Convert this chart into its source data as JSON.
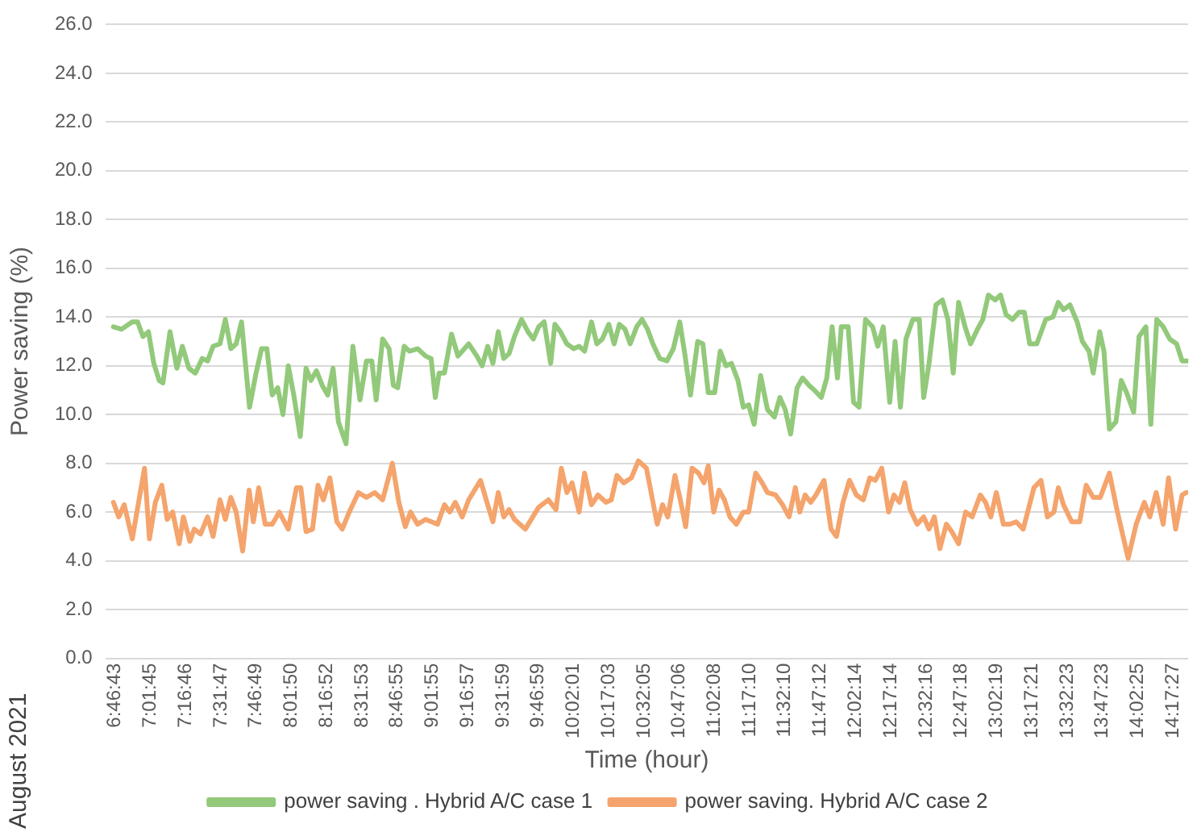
{
  "chart_data": {
    "type": "line",
    "xlabel": "Time (hour)",
    "ylabel": "Power saving (%)",
    "annotations": [
      "August 2021"
    ],
    "xlim": [
      6.71,
      14.4
    ],
    "xticks": [
      {
        "value": 6.7786,
        "label": "6:46:43"
      },
      {
        "value": 7.0292,
        "label": "7:01:45"
      },
      {
        "value": 7.2794,
        "label": "7:16:46"
      },
      {
        "value": 7.5297,
        "label": "7:31:47"
      },
      {
        "value": 7.7803,
        "label": "7:46:49"
      },
      {
        "value": 8.0306,
        "label": "8:01:50"
      },
      {
        "value": 8.2811,
        "label": "8:16:52"
      },
      {
        "value": 8.5314,
        "label": "8:31:53"
      },
      {
        "value": 8.7819,
        "label": "8:46:55"
      },
      {
        "value": 9.0319,
        "label": "9:01:55"
      },
      {
        "value": 9.2825,
        "label": "9:16:57"
      },
      {
        "value": 9.5331,
        "label": "9:31:59"
      },
      {
        "value": 9.7831,
        "label": "9:46:59"
      },
      {
        "value": 10.0336,
        "label": "10:02:01"
      },
      {
        "value": 10.2842,
        "label": "10:17:03"
      },
      {
        "value": 10.5347,
        "label": "10:32:05"
      },
      {
        "value": 10.785,
        "label": "10:47:06"
      },
      {
        "value": 11.0356,
        "label": "11:02:08"
      },
      {
        "value": 11.2861,
        "label": "11:17:10"
      },
      {
        "value": 11.5361,
        "label": "11:32:10"
      },
      {
        "value": 11.7867,
        "label": "11:47:12"
      },
      {
        "value": 12.0372,
        "label": "12:02:14"
      },
      {
        "value": 12.2872,
        "label": "12:17:14"
      },
      {
        "value": 12.5378,
        "label": "12:32:16"
      },
      {
        "value": 12.7883,
        "label": "12:47:18"
      },
      {
        "value": 13.0386,
        "label": "13:02:19"
      },
      {
        "value": 13.2892,
        "label": "13:17:21"
      },
      {
        "value": 13.5397,
        "label": "13:32:23"
      },
      {
        "value": 13.7897,
        "label": "13:47:23"
      },
      {
        "value": 14.0403,
        "label": "14:02:25"
      },
      {
        "value": 14.2908,
        "label": "14:17:27"
      }
    ],
    "ylim": [
      0,
      26
    ],
    "yticks": [
      {
        "value": 0,
        "label": "0.0"
      },
      {
        "value": 2,
        "label": "2.0"
      },
      {
        "value": 4,
        "label": "4.0"
      },
      {
        "value": 6,
        "label": "6.0"
      },
      {
        "value": 8,
        "label": "8.0"
      },
      {
        "value": 10,
        "label": "10.0"
      },
      {
        "value": 12,
        "label": "12.0"
      },
      {
        "value": 14,
        "label": "14.0"
      },
      {
        "value": 16,
        "label": "16.0"
      },
      {
        "value": 18,
        "label": "18.0"
      },
      {
        "value": 20,
        "label": "20.0"
      },
      {
        "value": 22,
        "label": "22.0"
      },
      {
        "value": 24,
        "label": "24.0"
      },
      {
        "value": 26,
        "label": "26.0"
      }
    ],
    "grid": "y",
    "legend": "bottom",
    "series": [
      {
        "name": "power saving . Hybrid A/C case 1",
        "color": "#92c97a",
        "x": [
          6.767,
          6.825,
          6.901,
          6.939,
          6.977,
          7.016,
          7.054,
          7.092,
          7.119,
          7.169,
          7.218,
          7.257,
          7.303,
          7.349,
          7.398,
          7.436,
          7.475,
          7.524,
          7.562,
          7.601,
          7.639,
          7.677,
          7.734,
          7.78,
          7.819,
          7.857,
          7.895,
          7.934,
          7.971,
          8.009,
          8.048,
          8.094,
          8.135,
          8.17,
          8.209,
          8.25,
          8.289,
          8.327,
          8.365,
          8.419,
          8.468,
          8.518,
          8.564,
          8.602,
          8.633,
          8.679,
          8.725,
          8.755,
          8.786,
          8.832,
          8.869,
          8.927,
          8.984,
          9.023,
          9.053,
          9.08,
          9.118,
          9.168,
          9.214,
          9.29,
          9.348,
          9.386,
          9.425,
          9.462,
          9.5,
          9.539,
          9.577,
          9.615,
          9.665,
          9.711,
          9.749,
          9.787,
          9.826,
          9.872,
          9.902,
          9.941,
          9.987,
          10.036,
          10.074,
          10.113,
          10.162,
          10.2,
          10.239,
          10.285,
          10.323,
          10.36,
          10.4,
          10.437,
          10.483,
          10.521,
          10.56,
          10.598,
          10.647,
          10.698,
          10.743,
          10.789,
          10.827,
          10.865,
          10.916,
          10.953,
          10.991,
          11.037,
          11.076,
          11.117,
          11.156,
          11.202,
          11.24,
          11.278,
          11.317,
          11.363,
          11.412,
          11.461,
          11.5,
          11.538,
          11.576,
          11.622,
          11.661,
          11.707,
          11.745,
          11.794,
          11.833,
          11.871,
          11.909,
          11.936,
          11.985,
          12.023,
          12.062,
          12.108,
          12.158,
          12.195,
          12.234,
          12.28,
          12.318,
          12.356,
          12.395,
          12.444,
          12.49,
          12.521,
          12.559,
          12.608,
          12.654,
          12.693,
          12.731,
          12.769,
          12.815,
          12.854,
          12.903,
          12.941,
          12.98,
          13.029,
          13.067,
          13.106,
          13.152,
          13.198,
          13.236,
          13.274,
          13.324,
          13.388,
          13.439,
          13.477,
          13.514,
          13.56,
          13.611,
          13.648,
          13.695,
          13.725,
          13.771,
          13.801,
          13.84,
          13.886,
          13.924,
          13.962,
          14.012,
          14.05,
          14.099,
          14.134,
          14.176,
          14.222,
          14.268,
          14.317,
          14.356,
          14.394
        ],
        "values": [
          13.6,
          13.5,
          13.8,
          13.8,
          13.2,
          13.4,
          12.1,
          11.4,
          11.3,
          13.4,
          11.9,
          12.8,
          11.9,
          11.7,
          12.3,
          12.2,
          12.8,
          12.9,
          13.9,
          12.7,
          12.9,
          13.8,
          10.3,
          11.7,
          12.7,
          12.7,
          10.8,
          11.1,
          10.0,
          12.0,
          10.8,
          9.1,
          11.9,
          11.4,
          11.8,
          11.2,
          10.8,
          11.9,
          9.7,
          8.8,
          12.8,
          10.6,
          12.2,
          12.2,
          10.6,
          13.1,
          12.7,
          11.2,
          11.1,
          12.8,
          12.6,
          12.7,
          12.4,
          12.3,
          10.7,
          11.7,
          11.7,
          13.3,
          12.4,
          12.9,
          12.4,
          12.0,
          12.8,
          12.1,
          13.4,
          12.3,
          12.5,
          13.2,
          13.9,
          13.4,
          13.1,
          13.6,
          13.8,
          12.1,
          13.7,
          13.4,
          12.9,
          12.7,
          12.8,
          12.6,
          13.8,
          12.9,
          13.1,
          13.7,
          12.9,
          13.7,
          13.5,
          12.9,
          13.6,
          13.9,
          13.5,
          12.9,
          12.3,
          12.2,
          12.7,
          13.8,
          12.4,
          10.8,
          13.0,
          12.9,
          10.9,
          10.9,
          12.6,
          12.0,
          12.1,
          11.4,
          10.3,
          10.4,
          9.6,
          11.6,
          10.2,
          9.9,
          10.7,
          10.2,
          9.2,
          11.1,
          11.5,
          11.2,
          11.0,
          10.7,
          11.5,
          13.6,
          11.5,
          13.6,
          13.6,
          10.5,
          10.3,
          13.9,
          13.6,
          12.8,
          13.6,
          10.5,
          13.0,
          10.3,
          13.1,
          13.9,
          13.9,
          10.7,
          12.1,
          14.5,
          14.7,
          13.9,
          11.7,
          14.6,
          13.6,
          12.9,
          13.5,
          13.9,
          14.9,
          14.7,
          14.9,
          14.1,
          13.9,
          14.2,
          14.2,
          12.9,
          12.9,
          13.9,
          14.0,
          14.6,
          14.3,
          14.5,
          13.8,
          13.0,
          12.6,
          11.7,
          13.4,
          12.6,
          9.4,
          9.7,
          11.4,
          10.9,
          10.1,
          13.2,
          13.6,
          9.6,
          13.9,
          13.6,
          13.1,
          12.9,
          12.2,
          12.2
        ]
      },
      {
        "name": "power saving. Hybrid A/C case 2",
        "color": "#f4a46c",
        "x": [
          6.767,
          6.805,
          6.844,
          6.901,
          6.988,
          7.023,
          7.065,
          7.111,
          7.149,
          7.188,
          7.234,
          7.264,
          7.31,
          7.341,
          7.386,
          7.436,
          7.475,
          7.524,
          7.562,
          7.601,
          7.639,
          7.685,
          7.731,
          7.761,
          7.799,
          7.845,
          7.895,
          7.945,
          8.009,
          8.067,
          8.098,
          8.135,
          8.181,
          8.22,
          8.258,
          8.304,
          8.354,
          8.392,
          8.442,
          8.507,
          8.564,
          8.622,
          8.679,
          8.748,
          8.794,
          8.84,
          8.877,
          8.927,
          8.984,
          9.069,
          9.118,
          9.156,
          9.195,
          9.244,
          9.29,
          9.374,
          9.425,
          9.462,
          9.5,
          9.539,
          9.577,
          9.615,
          9.692,
          9.787,
          9.856,
          9.91,
          9.948,
          9.987,
          10.024,
          10.074,
          10.113,
          10.162,
          10.208,
          10.265,
          10.303,
          10.342,
          10.391,
          10.445,
          10.495,
          10.552,
          10.629,
          10.667,
          10.704,
          10.755,
          10.793,
          10.831,
          10.876,
          10.922,
          10.961,
          10.991,
          11.03,
          11.068,
          11.106,
          11.145,
          11.191,
          11.24,
          11.278,
          11.328,
          11.374,
          11.412,
          11.469,
          11.519,
          11.565,
          11.61,
          11.641,
          11.679,
          11.719,
          11.756,
          11.813,
          11.863,
          11.902,
          11.948,
          11.994,
          12.043,
          12.092,
          12.138,
          12.177,
          12.223,
          12.272,
          12.31,
          12.349,
          12.387,
          12.425,
          12.475,
          12.521,
          12.559,
          12.597,
          12.636,
          12.682,
          12.72,
          12.769,
          12.819,
          12.865,
          12.923,
          12.96,
          12.998,
          13.037,
          13.087,
          13.132,
          13.178,
          13.228,
          13.304,
          13.354,
          13.4,
          13.446,
          13.477,
          13.514,
          13.572,
          13.629,
          13.675,
          13.725,
          13.775,
          13.84,
          13.897,
          13.973,
          14.03,
          14.088,
          14.127,
          14.172,
          14.222,
          14.26,
          14.31,
          14.356,
          14.386
        ],
        "values": [
          6.4,
          5.8,
          6.3,
          4.9,
          7.8,
          4.9,
          6.4,
          7.1,
          5.7,
          6.0,
          4.7,
          5.8,
          4.8,
          5.3,
          5.1,
          5.8,
          5.0,
          6.5,
          5.7,
          6.6,
          6.0,
          4.4,
          6.9,
          5.6,
          7.0,
          5.5,
          5.5,
          6.0,
          5.3,
          7.0,
          7.0,
          5.2,
          5.3,
          7.1,
          6.5,
          7.4,
          5.6,
          5.3,
          6.0,
          6.8,
          6.6,
          6.8,
          6.5,
          8.0,
          6.4,
          5.4,
          6.0,
          5.5,
          5.7,
          5.5,
          6.3,
          6.0,
          6.4,
          5.8,
          6.5,
          7.3,
          6.3,
          5.6,
          6.8,
          5.8,
          6.1,
          5.7,
          5.3,
          6.2,
          6.5,
          6.1,
          7.8,
          6.8,
          7.2,
          6.0,
          7.6,
          6.3,
          6.7,
          6.4,
          6.5,
          7.5,
          7.2,
          7.4,
          8.1,
          7.8,
          5.5,
          6.3,
          5.8,
          7.5,
          6.5,
          5.4,
          7.8,
          7.6,
          7.2,
          7.9,
          6.0,
          6.9,
          6.5,
          5.8,
          5.5,
          6.0,
          6.0,
          7.6,
          7.2,
          6.8,
          6.7,
          6.3,
          5.8,
          7.0,
          6.0,
          6.7,
          6.4,
          6.7,
          7.3,
          5.3,
          5.0,
          6.4,
          7.3,
          6.7,
          6.5,
          7.4,
          7.3,
          7.8,
          6.0,
          6.7,
          6.4,
          7.2,
          6.1,
          5.5,
          5.8,
          5.3,
          5.8,
          4.5,
          5.5,
          5.2,
          4.7,
          6.0,
          5.8,
          6.7,
          6.4,
          5.8,
          6.8,
          5.5,
          5.5,
          5.6,
          5.3,
          7.0,
          7.3,
          5.8,
          6.0,
          7.0,
          6.3,
          5.6,
          5.6,
          7.1,
          6.6,
          6.6,
          7.6,
          6.0,
          4.1,
          5.5,
          6.4,
          5.8,
          6.8,
          5.5,
          7.4,
          5.3,
          6.7,
          6.8
        ]
      }
    ]
  }
}
